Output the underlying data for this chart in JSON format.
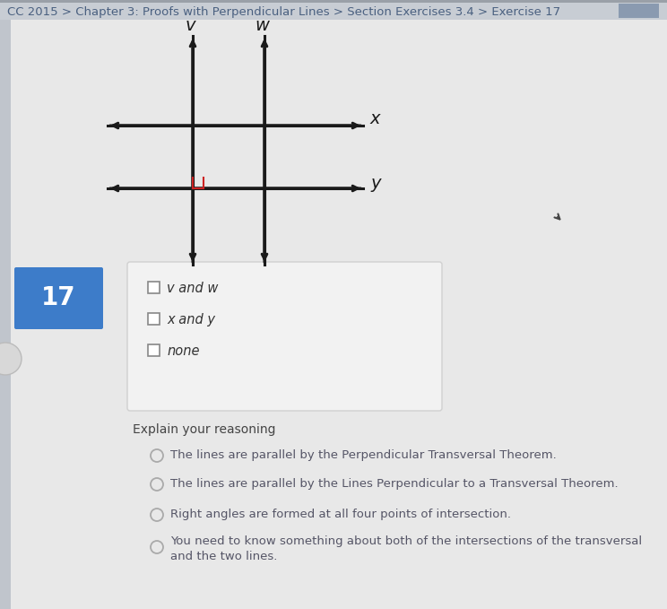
{
  "bg_color": "#e0e0e0",
  "content_bg": "#e8e8e8",
  "white_box_color": "#f0f0f0",
  "title_text": "CC 2015 > Chapter 3: Proofs with Perpendicular Lines > Section Exercises 3.4 > Exercise 17",
  "title_color": "#4a6080",
  "title_fontsize": 9.5,
  "number_box_color": "#3d7cc9",
  "number_text": "17",
  "number_text_color": "#ffffff",
  "number_fontsize": 20,
  "checkbox_items": [
    "v and w",
    "x and y",
    "none"
  ],
  "radio_label": "Explain your reasoning",
  "radio_items": [
    "The lines are parallel by the Perpendicular Transversal Theorem.",
    "The lines are parallel by the Lines Perpendicular to a Transversal Theorem.",
    "Right angles are formed at all four points of intersection.",
    "You need to know something about both of the intersections of the transversal\nand the two lines."
  ],
  "line_color": "#1a1a1a",
  "right_angle_color": "#cc2222",
  "label_color": "#1a1a1a",
  "radio_color": "#aaaaaa",
  "checkbox_color": "#888888",
  "text_color": "#555566",
  "explain_color": "#444444",
  "cursor_color": "#444444"
}
